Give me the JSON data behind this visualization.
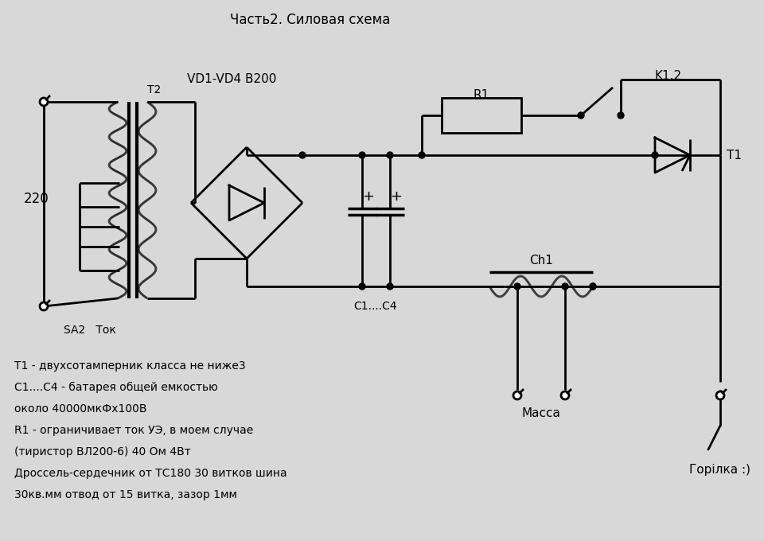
{
  "title": "Часть2. Силовая схема",
  "bg_color": "#d8d8d8",
  "line_color": "#000000",
  "label_VD": "VD1-VD4 B200",
  "label_T2": "T2",
  "label_R1": "R1",
  "label_K12": "K1.2",
  "label_T1": "T1",
  "label_Ch1": "Ch1",
  "label_C14": "C1....C4",
  "label_SA2": "SA2   Ток",
  "label_220": "220",
  "label_Massa": "Масса",
  "label_Gorilka": "Горілка :)",
  "notes": [
    "Т1 - двухсотамперник класса не ниже3",
    "С1....С4 - батарея общей емкостью",
    "около 40000мкФх100В",
    "R1 - ограничивает ток УЭ, в моем случае",
    "(тиристор ВЛ200-6) 40 Ом 4Вт",
    "Дроссель-сердечник от ТС180 30 витков шина",
    "30кв.мм отвод от 15 витка, зазор 1мм"
  ]
}
